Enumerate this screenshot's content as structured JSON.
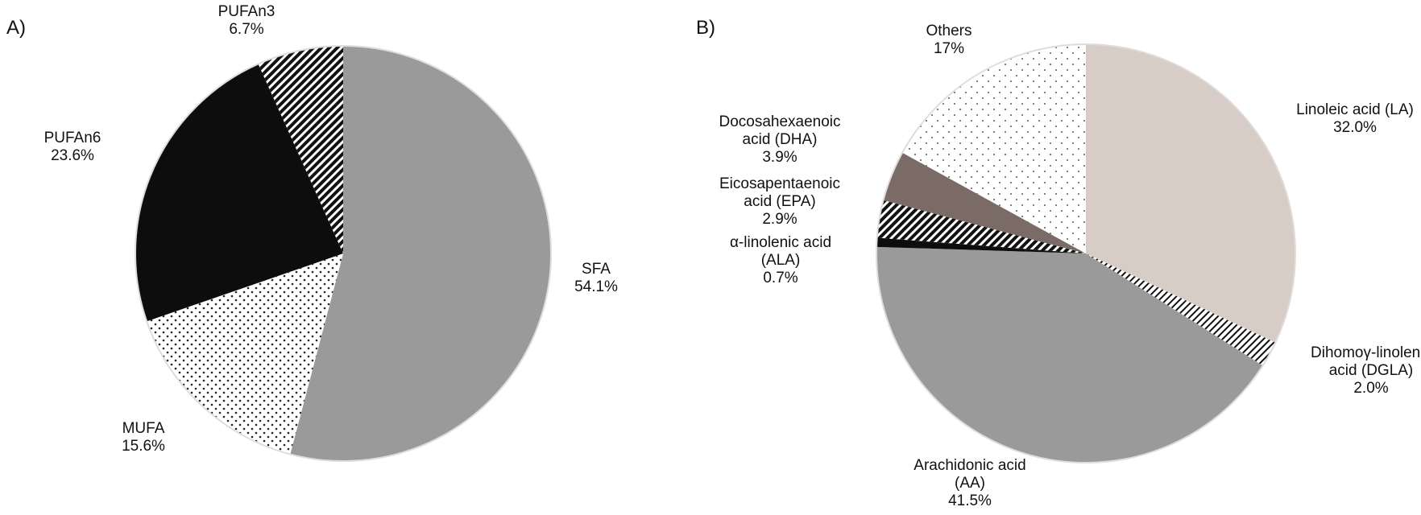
{
  "chart_data": [
    {
      "type": "pie",
      "panel_label": "A)",
      "slices": [
        {
          "name": "SFA",
          "value": 54.1,
          "value_label": "54.1%",
          "fill": "#9a9a9a",
          "pattern": "solid"
        },
        {
          "name": "MUFA",
          "value": 15.6,
          "value_label": "15.6%",
          "fill": "#ffffff",
          "pattern": "dots"
        },
        {
          "name": "PUFAn6",
          "value": 23.6,
          "value_label": "23.6%",
          "fill": "#0d0d0d",
          "pattern": "solid"
        },
        {
          "name": "PUFAn3",
          "value": 6.7,
          "value_label": "6.7%",
          "fill": "#1a1a1a",
          "pattern": "diag-dense"
        }
      ],
      "start": "12 o'clock",
      "direction": "clockwise",
      "legend": "none"
    },
    {
      "type": "pie",
      "panel_label": "B)",
      "slices": [
        {
          "name": "Linoleic acid (LA)",
          "name_lines": [
            "Linoleic acid (LA)"
          ],
          "value": 32.0,
          "value_label": "32.0%",
          "fill": "#d7ccc6",
          "pattern": "solid"
        },
        {
          "name": "Dihomoγ-linolenic acid (DGLA)",
          "name_lines": [
            "Dihomoγ-linolenic",
            "acid (DGLA)"
          ],
          "value": 2.0,
          "value_label": "2.0%",
          "fill": "#333333",
          "pattern": "diag-fine"
        },
        {
          "name": "Arachidonic acid (AA)",
          "name_lines": [
            "Arachidonic acid",
            "(AA)"
          ],
          "value": 41.5,
          "value_label": "41.5%",
          "fill": "#9a9a9a",
          "pattern": "solid"
        },
        {
          "name": "α-linolenic acid (ALA)",
          "name_lines": [
            "α-linolenic acid",
            "(ALA)"
          ],
          "value": 0.7,
          "value_label": "0.7%",
          "fill": "#0d0d0d",
          "pattern": "solid"
        },
        {
          "name": "Eicosapentaenoic acid (EPA)",
          "name_lines": [
            "Eicosapentaenoic",
            "acid (EPA)"
          ],
          "value": 2.9,
          "value_label": "2.9%",
          "fill": "#1a1a1a",
          "pattern": "diag-dense"
        },
        {
          "name": "Docosahexaenoic acid (DHA)",
          "name_lines": [
            "Docosahexaenoic",
            "acid (DHA)"
          ],
          "value": 3.9,
          "value_label": "3.9%",
          "fill": "#7b6b66",
          "pattern": "solid"
        },
        {
          "name": "Others",
          "name_lines": [
            "Others"
          ],
          "value": 17,
          "value_label": "17%",
          "fill": "#ffffff",
          "pattern": "sparse-dots"
        }
      ],
      "start": "12 o'clock",
      "direction": "clockwise",
      "legend": "none"
    }
  ]
}
